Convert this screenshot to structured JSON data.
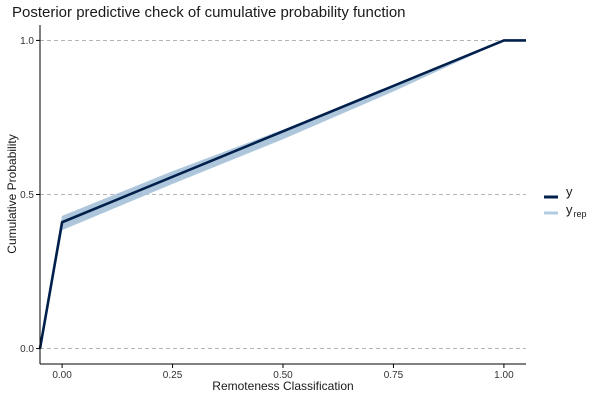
{
  "chart_data": {
    "type": "line",
    "title": "Posterior predictive check of cumulative probability function",
    "xlabel": "Remoteness Classification",
    "ylabel": "Cumulative Probability",
    "xlim": [
      -0.05,
      1.05
    ],
    "ylim": [
      -0.05,
      1.05
    ],
    "x_ticks": [
      0.0,
      0.25,
      0.5,
      0.75,
      1.0
    ],
    "x_tick_labels": [
      "0.00",
      "0.25",
      "0.50",
      "0.75",
      "1.00"
    ],
    "y_ticks": [
      0.0,
      0.5,
      1.0
    ],
    "y_tick_labels": [
      "0.0",
      "0.5",
      "1.0"
    ],
    "grid": "horizontal-dashed",
    "legend_position": "right",
    "series": [
      {
        "name": "y",
        "color": "#011f4b",
        "x": [
          -0.05,
          0.0,
          1.0,
          1.05
        ],
        "y": [
          0.0,
          0.41,
          1.0,
          1.0
        ]
      },
      {
        "name": "y",
        "subscript": "rep",
        "color": "#b3cde0",
        "band_color": "#9fbcd6",
        "x": [
          -0.05,
          0.0,
          0.25,
          0.5,
          0.75,
          1.0,
          1.05
        ],
        "y_lower": [
          0.0,
          0.385,
          0.535,
          0.68,
          0.835,
          1.0,
          1.0
        ],
        "y_upper": [
          0.0,
          0.43,
          0.575,
          0.71,
          0.85,
          1.0,
          1.0
        ]
      }
    ]
  }
}
